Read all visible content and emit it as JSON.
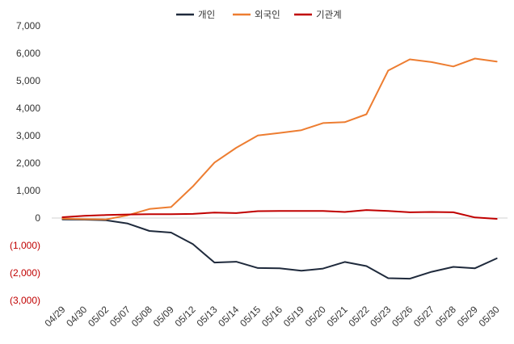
{
  "chart_data": {
    "type": "line",
    "categories": [
      "04/29",
      "04/30",
      "05/02",
      "05/07",
      "05/08",
      "05/09",
      "05/12",
      "05/13",
      "05/14",
      "05/15",
      "05/16",
      "05/19",
      "05/20",
      "05/21",
      "05/22",
      "05/23",
      "05/26",
      "05/27",
      "05/28",
      "05/29",
      "05/30"
    ],
    "series": [
      {
        "name": "개인",
        "color": "#1f2a3c",
        "values": [
          -50,
          -60,
          -80,
          -200,
          -470,
          -530,
          -950,
          -1620,
          -1590,
          -1820,
          -1830,
          -1920,
          -1840,
          -1600,
          -1750,
          -2190,
          -2210,
          -1960,
          -1780,
          -1830,
          -1470
        ]
      },
      {
        "name": "외국인",
        "color": "#ed7d31",
        "values": [
          -20,
          -40,
          -50,
          100,
          330,
          400,
          1150,
          2020,
          2560,
          3010,
          3100,
          3200,
          3460,
          3490,
          3780,
          5370,
          5780,
          5680,
          5520,
          5810,
          5700
        ]
      },
      {
        "name": "기관계",
        "color": "#c00000",
        "values": [
          30,
          80,
          110,
          130,
          140,
          140,
          150,
          200,
          180,
          250,
          260,
          260,
          260,
          220,
          290,
          260,
          210,
          220,
          210,
          20,
          -30
        ]
      }
    ],
    "ylim": [
      -3000,
      7000
    ],
    "yticks": [
      {
        "value": 7000,
        "label": "7,000"
      },
      {
        "value": 6000,
        "label": "6,000"
      },
      {
        "value": 5000,
        "label": "5,000"
      },
      {
        "value": 4000,
        "label": "4,000"
      },
      {
        "value": 3000,
        "label": "3,000"
      },
      {
        "value": 2000,
        "label": "2,000"
      },
      {
        "value": 1000,
        "label": "1,000"
      },
      {
        "value": 0,
        "label": "0"
      },
      {
        "value": -1000,
        "label": "(1,000)"
      },
      {
        "value": -2000,
        "label": "(2,000)"
      },
      {
        "value": -3000,
        "label": "(3,000)"
      }
    ],
    "negative_tick_color": "#c00000",
    "grid": false,
    "legend": "top-center",
    "title": "",
    "xlabel": "",
    "ylabel": ""
  }
}
